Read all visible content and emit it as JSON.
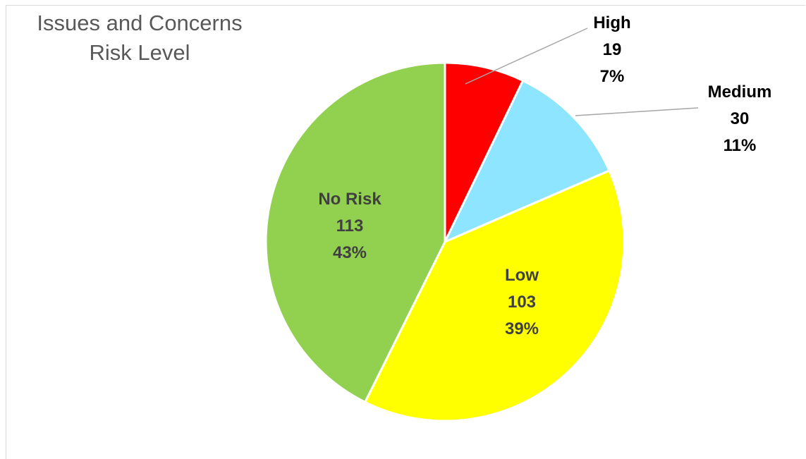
{
  "chart_data": {
    "type": "pie",
    "title_lines": [
      "Issues and Concerns",
      "Risk Level"
    ],
    "slices": [
      {
        "label": "High",
        "value": 19,
        "percent": "7%",
        "color": "#ff0000"
      },
      {
        "label": "Medium",
        "value": 30,
        "percent": "11%",
        "color": "#8ee5ff"
      },
      {
        "label": "Low",
        "value": 103,
        "percent": "39%",
        "color": "#ffff00"
      },
      {
        "label": "No Risk",
        "value": 113,
        "percent": "43%",
        "color": "#92d050"
      }
    ],
    "label_color_outside": "#000000",
    "label_color_inside": "#404040",
    "leader_line_color": "#a6a6a6"
  }
}
